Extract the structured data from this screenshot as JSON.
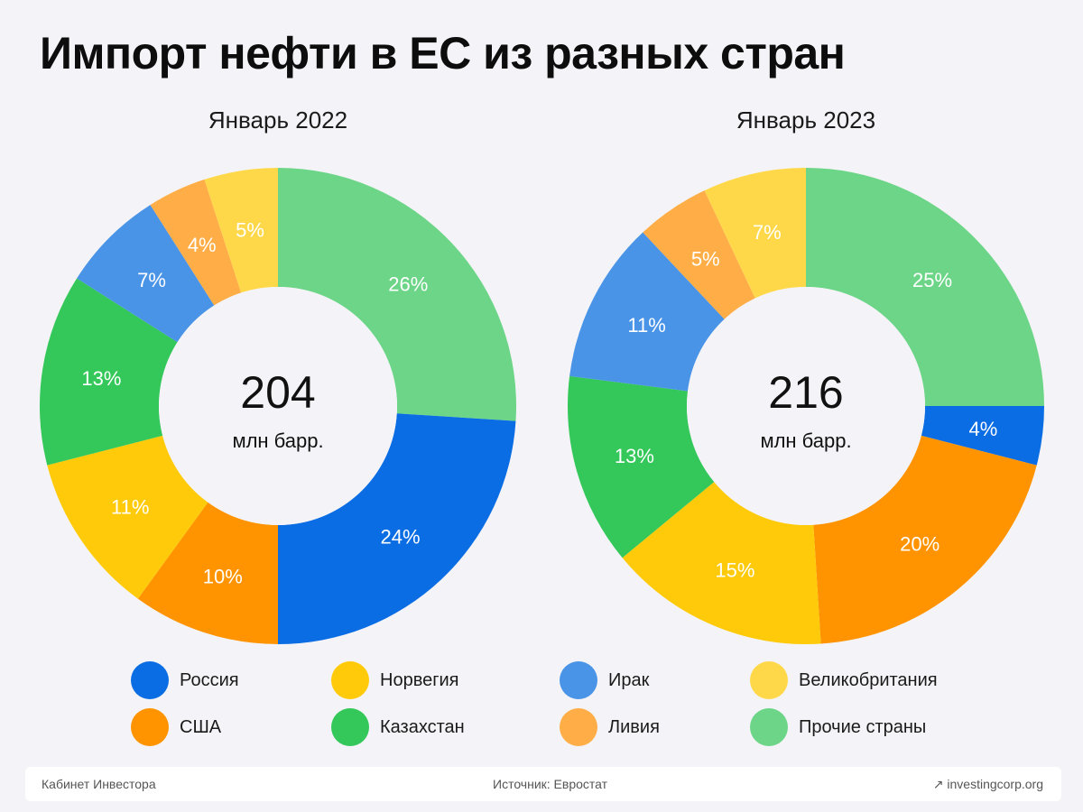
{
  "title": "Импорт нефти в ЕС из разных стран",
  "colors": {
    "russia": "#0a6de3",
    "usa": "#ff9400",
    "norway": "#ffca0a",
    "kazakhstan": "#34c759",
    "iraq": "#4a94e8",
    "libya": "#ffae47",
    "uk": "#ffd84a",
    "other": "#6dd587"
  },
  "legend": [
    {
      "label": "Россия",
      "color": "#0a6de3"
    },
    {
      "label": "США",
      "color": "#ff9400"
    },
    {
      "label": "Норвегия",
      "color": "#ffca0a"
    },
    {
      "label": "Казахстан",
      "color": "#34c759"
    },
    {
      "label": "Ирак",
      "color": "#4a94e8"
    },
    {
      "label": "Ливия",
      "color": "#ffae47"
    },
    {
      "label": "Великобритания",
      "color": "#ffd84a"
    },
    {
      "label": "Прочие страны",
      "color": "#6dd587"
    }
  ],
  "chart_data": [
    {
      "type": "pie",
      "title": "Январь 2022",
      "center_value": "204",
      "center_unit": "млн барр.",
      "slices": [
        {
          "name": "Прочие страны",
          "value": 26,
          "label": "26%",
          "color": "#6dd587"
        },
        {
          "name": "Россия",
          "value": 24,
          "label": "24%",
          "color": "#0a6de3"
        },
        {
          "name": "США",
          "value": 10,
          "label": "10%",
          "color": "#ff9400"
        },
        {
          "name": "Норвегия",
          "value": 11,
          "label": "11%",
          "color": "#ffca0a"
        },
        {
          "name": "Казахстан",
          "value": 13,
          "label": "13%",
          "color": "#34c759"
        },
        {
          "name": "Ирак",
          "value": 7,
          "label": "7%",
          "color": "#4a94e8"
        },
        {
          "name": "Ливия",
          "value": 4,
          "label": "4%",
          "color": "#ffae47"
        },
        {
          "name": "Великобритания",
          "value": 5,
          "label": "5%",
          "color": "#ffd84a"
        }
      ]
    },
    {
      "type": "pie",
      "title": "Январь 2023",
      "center_value": "216",
      "center_unit": "млн барр.",
      "slices": [
        {
          "name": "Прочие страны",
          "value": 25,
          "label": "25%",
          "color": "#6dd587"
        },
        {
          "name": "Россия",
          "value": 4,
          "label": "4%",
          "color": "#0a6de3"
        },
        {
          "name": "США",
          "value": 20,
          "label": "20%",
          "color": "#ff9400"
        },
        {
          "name": "Норвегия",
          "value": 15,
          "label": "15%",
          "color": "#ffca0a"
        },
        {
          "name": "Казахстан",
          "value": 13,
          "label": "13%",
          "color": "#34c759"
        },
        {
          "name": "Ирак",
          "value": 11,
          "label": "11%",
          "color": "#4a94e8"
        },
        {
          "name": "Ливия",
          "value": 5,
          "label": "5%",
          "color": "#ffae47"
        },
        {
          "name": "Великобритания",
          "value": 7,
          "label": "7%",
          "color": "#ffd84a"
        }
      ]
    }
  ],
  "footer": {
    "left": "Кабинет Инвестора",
    "source": "Источник: Евростат",
    "site": "↗ investingcorp.org"
  }
}
